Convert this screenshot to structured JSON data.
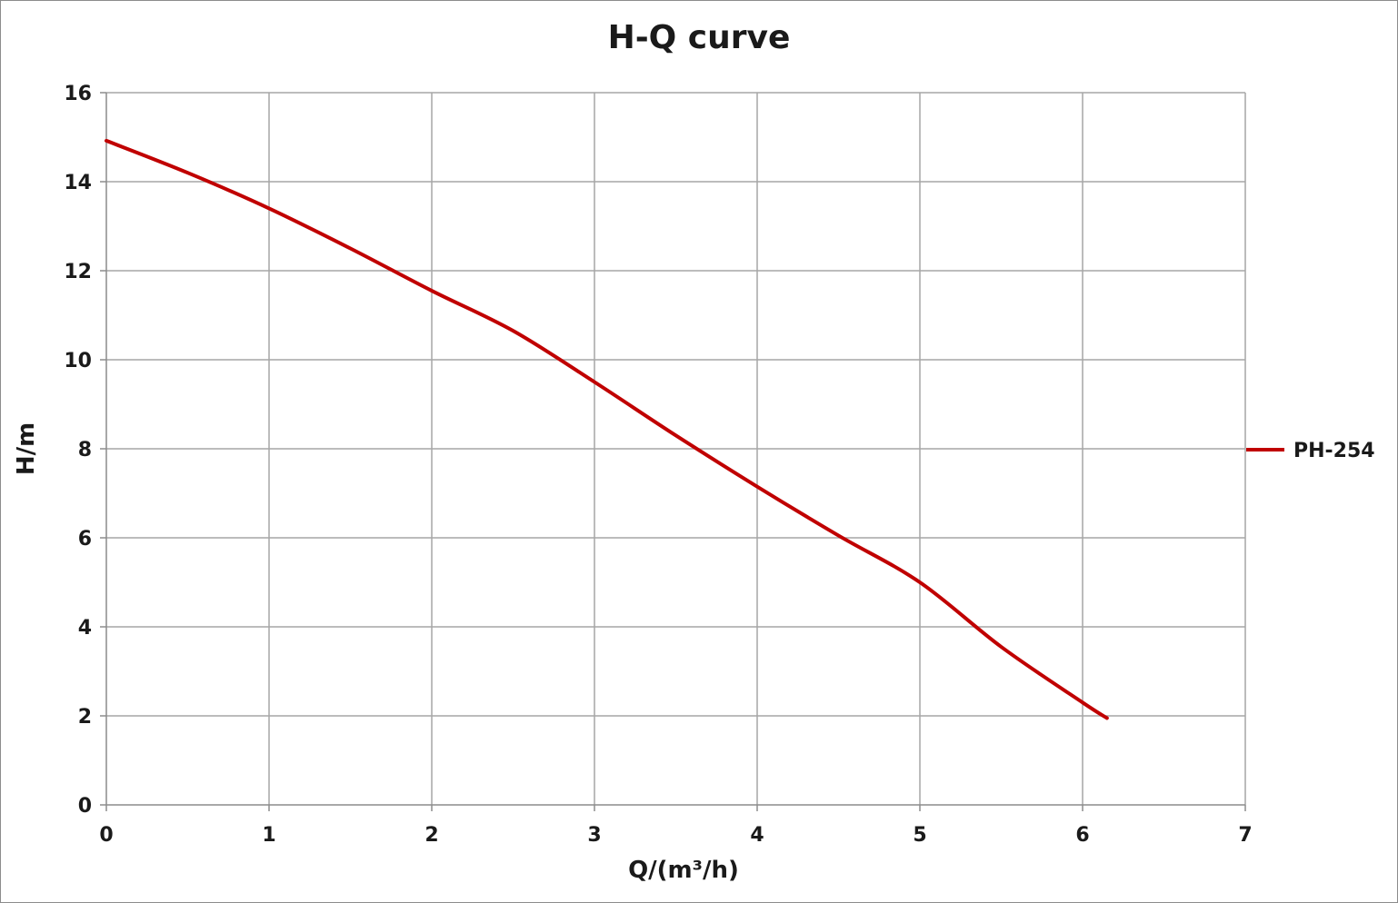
{
  "chart_data": {
    "type": "line",
    "title": "H-Q  curve",
    "xlabel": "Q/(m³/h)",
    "ylabel": "H/m",
    "xlim": [
      0,
      7
    ],
    "ylim": [
      0,
      16
    ],
    "xticks": [
      0,
      1,
      2,
      3,
      4,
      5,
      6,
      7
    ],
    "yticks": [
      0,
      2,
      4,
      6,
      8,
      10,
      12,
      14,
      16
    ],
    "grid": true,
    "legend": "right",
    "series": [
      {
        "name": "PH-254",
        "color": "#c00000",
        "x": [
          0,
          0.5,
          1,
          1.5,
          2,
          2.5,
          3,
          3.5,
          4,
          4.5,
          5,
          5.5,
          6,
          6.15
        ],
        "y": [
          14.92,
          14.2,
          13.4,
          12.5,
          11.55,
          10.65,
          9.5,
          8.3,
          7.15,
          6.05,
          5.0,
          3.55,
          2.3,
          1.95
        ]
      }
    ]
  }
}
